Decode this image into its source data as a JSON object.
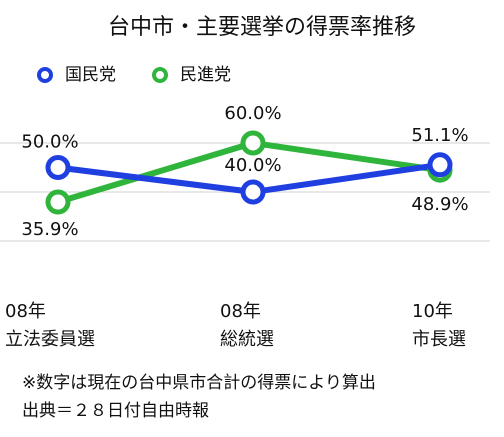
{
  "chart_data": {
    "type": "line",
    "title": "台中市・主要選挙の得票率推移",
    "categories": [
      [
        "08年",
        "立法委員選"
      ],
      [
        "08年",
        "総統選"
      ],
      [
        "10年",
        "市長選"
      ]
    ],
    "series": [
      {
        "name": "民進党",
        "color": "#2fb43c",
        "values": [
          35.9,
          60.0,
          48.9
        ],
        "value_labels": [
          "35.9%",
          "60.0%",
          "48.9%"
        ]
      },
      {
        "name": "国民党",
        "color": "#1f3fe0",
        "values": [
          50.0,
          40.0,
          51.1
        ],
        "value_labels": [
          "50.0%",
          "40.0%",
          "51.1%"
        ]
      }
    ],
    "ylim": [
      10,
      70
    ],
    "yticks": [
      20,
      40,
      60
    ],
    "grid": true,
    "notes": [
      "※数字は現在の台中県市合計の得票により算出",
      "出典＝２８日付自由時報"
    ]
  }
}
